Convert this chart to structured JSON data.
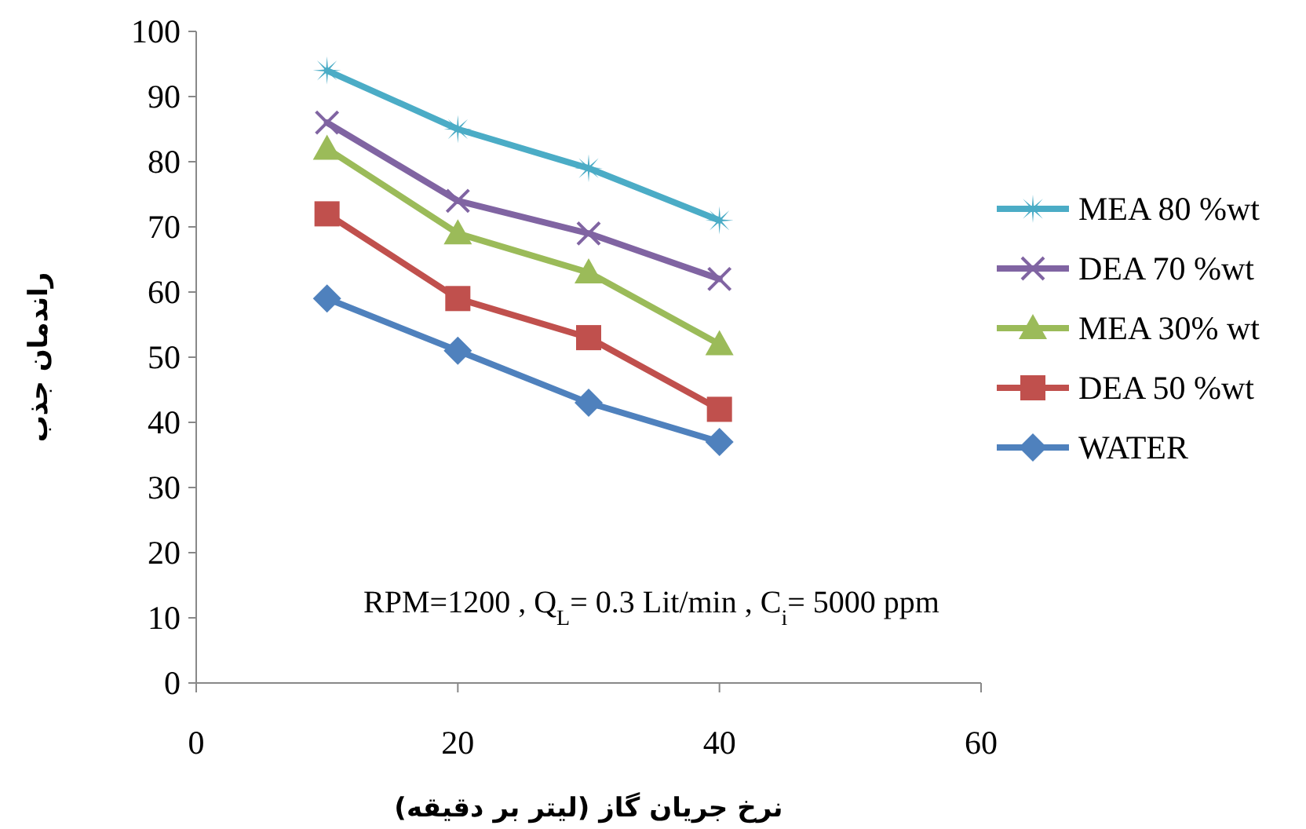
{
  "chart_data": {
    "type": "line",
    "xlabel": "نرخ جریان گاز (لیتر بر دقیقه)",
    "ylabel": "راندمان جذب",
    "x": [
      10,
      20,
      30,
      40
    ],
    "xlim": [
      0,
      60
    ],
    "xticks": [
      0,
      20,
      40,
      60
    ],
    "ylim": [
      0,
      100
    ],
    "yticks": [
      0,
      10,
      20,
      30,
      40,
      50,
      60,
      70,
      80,
      90,
      100
    ],
    "grid": false,
    "legend": "right",
    "line_style": "solid",
    "annotations": [
      "RPM=1200  , Q$_{L}$= 0.3 Lit/min , C$_{i}$= 5000 ppm"
    ],
    "series": [
      {
        "name": "MEA 80 %wt",
        "color": "#4bacc6",
        "marker": "star",
        "values": [
          94,
          85,
          79,
          71
        ]
      },
      {
        "name": "DEA 70 %wt",
        "color": "#8064a2",
        "marker": "cross",
        "values": [
          86,
          74,
          69,
          62
        ]
      },
      {
        "name": "MEA 30% wt",
        "color": "#9bbb59",
        "marker": "triangle",
        "values": [
          82,
          69,
          63,
          52
        ]
      },
      {
        "name": "DEA 50 %wt",
        "color": "#c0504d",
        "marker": "square",
        "values": [
          72,
          59,
          53,
          42
        ]
      },
      {
        "name": "WATER",
        "color": "#4f81bd",
        "marker": "diamond",
        "values": [
          59,
          51,
          43,
          37
        ]
      }
    ]
  }
}
